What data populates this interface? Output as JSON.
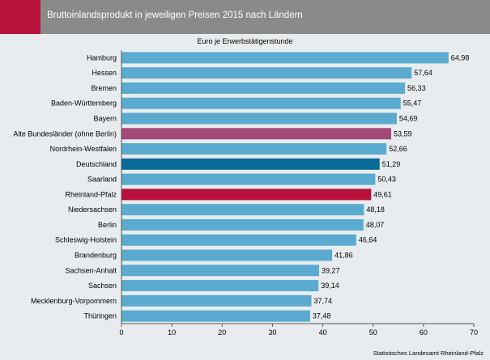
{
  "header": {
    "title": "Bruttoinlandsprodukt in jeweiligen Preisen 2015 nach Ländern"
  },
  "colors": {
    "header_bg": "#8a8a8a",
    "accent": "#b8123c",
    "bar_default": "#5aabcf",
    "bar_alte_bundeslaender": "#a3497a",
    "bar_deutschland": "#0a6a97",
    "bar_rheinland_pfalz": "#b8123c"
  },
  "chart_data": {
    "type": "bar",
    "orientation": "horizontal",
    "subtitle": "Euro je Erwerbstätigenstunde",
    "categories": [
      "Hamburg",
      "Hessen",
      "Bremen",
      "Baden-Württemberg",
      "Bayern",
      "Alte Bundesländer (ohne Berlin)",
      "Nordrhein-Westfalen",
      "Deutschland",
      "Saarland",
      "Rheinland-Pfalz",
      "Niedersachsen",
      "Berlin",
      "Schleswig-Holstein",
      "Brandenburg",
      "Sachsen-Anhalt",
      "Sachsen",
      "Mecklenburg-Vorpommern",
      "Thüringen"
    ],
    "values": [
      64.98,
      57.64,
      56.33,
      55.47,
      54.69,
      53.59,
      52.66,
      51.29,
      50.43,
      49.61,
      48.18,
      48.07,
      46.64,
      41.86,
      39.27,
      39.14,
      37.74,
      37.48
    ],
    "value_labels": [
      "64,98",
      "57,64",
      "56,33",
      "55,47",
      "54,69",
      "53,59",
      "52,66",
      "51,29",
      "50,43",
      "49,61",
      "48,18",
      "48,07",
      "46,64",
      "41,86",
      "39,27",
      "39,14",
      "37,74",
      "37,48"
    ],
    "highlight_colors": {
      "Alte Bundesländer (ohne Berlin)": "#a3497a",
      "Deutschland": "#0a6a97",
      "Rheinland-Pfalz": "#b8123c"
    },
    "xlim": [
      0,
      70
    ],
    "xticks": [
      0,
      10,
      20,
      30,
      40,
      50,
      60,
      70
    ],
    "xlabel": "",
    "ylabel": "",
    "grid": false,
    "legend": "none"
  },
  "footer": {
    "source": "Statistisches Landesamt Rheinland-Pfalz"
  }
}
